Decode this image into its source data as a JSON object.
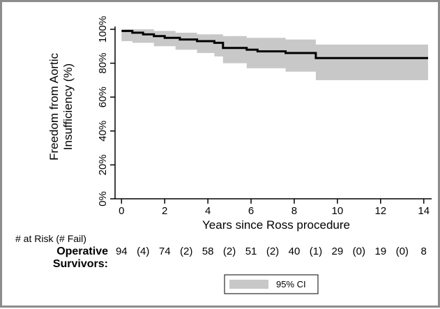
{
  "chart_data": {
    "type": "line",
    "subtype": "kaplan-meier survival curve with 95% confidence band",
    "ylabel_line1": "Freedom from Aortic",
    "ylabel_line2": "Insufficiency (%)",
    "xlabel": "Years since Ross procedure",
    "xlim": [
      -0.3,
      14.3
    ],
    "ylim": [
      0,
      1
    ],
    "xticks": [
      0,
      2,
      4,
      6,
      8,
      10,
      12,
      14
    ],
    "xtick_labels": [
      "0",
      "2",
      "4",
      "6",
      "8",
      "10",
      "12",
      "14"
    ],
    "yticks": [
      0,
      0.2,
      0.4,
      0.6,
      0.8,
      1.0
    ],
    "ytick_labels": [
      "0%",
      "20%",
      "40%",
      "60%",
      "80%",
      "100%"
    ],
    "grid": false,
    "series": [
      {
        "kind": "survival",
        "steps": [
          [
            0,
            0.99
          ],
          [
            0.5,
            0.98
          ],
          [
            1.0,
            0.97
          ],
          [
            1.5,
            0.96
          ],
          [
            2.0,
            0.95
          ],
          [
            2.7,
            0.94
          ],
          [
            3.5,
            0.93
          ],
          [
            4.3,
            0.92
          ],
          [
            4.7,
            0.89
          ],
          [
            5.8,
            0.88
          ],
          [
            6.3,
            0.87
          ],
          [
            7.6,
            0.86
          ],
          [
            9.0,
            0.83
          ],
          [
            14.2,
            0.83
          ]
        ]
      },
      {
        "kind": "ci-band",
        "upper": [
          [
            0,
            1.0
          ],
          [
            1.5,
            0.99
          ],
          [
            2.5,
            0.98
          ],
          [
            3.5,
            0.97
          ],
          [
            4.7,
            0.96
          ],
          [
            5.8,
            0.95
          ],
          [
            6.3,
            0.95
          ],
          [
            7.6,
            0.94
          ],
          [
            9.0,
            0.91
          ],
          [
            14.2,
            0.91
          ]
        ],
        "lower": [
          [
            0,
            0.93
          ],
          [
            0.5,
            0.92
          ],
          [
            1.5,
            0.9
          ],
          [
            2.5,
            0.88
          ],
          [
            3.5,
            0.86
          ],
          [
            4.3,
            0.84
          ],
          [
            4.7,
            0.8
          ],
          [
            5.8,
            0.77
          ],
          [
            7.6,
            0.75
          ],
          [
            9.0,
            0.7
          ],
          [
            14.2,
            0.7
          ]
        ]
      }
    ],
    "legend": {
      "position": "bottom",
      "label": "95% CI"
    }
  },
  "risk_table": {
    "header": "# at Risk (# Fail)",
    "row_label_line1": "Operative",
    "row_label_line2": "Survivors:",
    "values": [
      "94",
      "(4)",
      "74",
      "(2)",
      "58",
      "(2)",
      "51",
      "(2)",
      "40",
      "(1)",
      "29",
      "(0)",
      "19",
      "(0)",
      "8"
    ]
  },
  "colors": {
    "band": "#c8c8c8",
    "line": "#000000",
    "frame": "#8c8c8c"
  }
}
